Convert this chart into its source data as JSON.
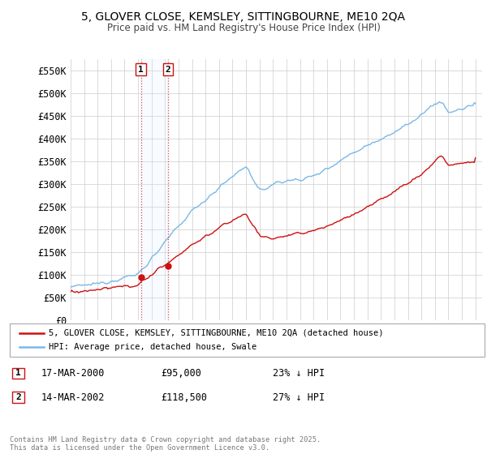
{
  "title_line1": "5, GLOVER CLOSE, KEMSLEY, SITTINGBOURNE, ME10 2QA",
  "title_line2": "Price paid vs. HM Land Registry's House Price Index (HPI)",
  "ylim": [
    0,
    575000
  ],
  "yticks": [
    0,
    50000,
    100000,
    150000,
    200000,
    250000,
    300000,
    350000,
    400000,
    450000,
    500000,
    550000
  ],
  "ytick_labels": [
    "£0",
    "£50K",
    "£100K",
    "£150K",
    "£200K",
    "£250K",
    "£300K",
    "£350K",
    "£400K",
    "£450K",
    "£500K",
    "£550K"
  ],
  "hpi_color": "#7ab8e8",
  "price_color": "#cc1111",
  "t1_year": 2000.21,
  "t2_year": 2002.21,
  "t1_price": 95000,
  "t2_price": 118500,
  "legend_line1": "5, GLOVER CLOSE, KEMSLEY, SITTINGBOURNE, ME10 2QA (detached house)",
  "legend_line2": "HPI: Average price, detached house, Swale",
  "footer": "Contains HM Land Registry data © Crown copyright and database right 2025.\nThis data is licensed under the Open Government Licence v3.0.",
  "background_color": "#ffffff",
  "grid_color": "#cccccc",
  "shade_color": "#ddeeff"
}
